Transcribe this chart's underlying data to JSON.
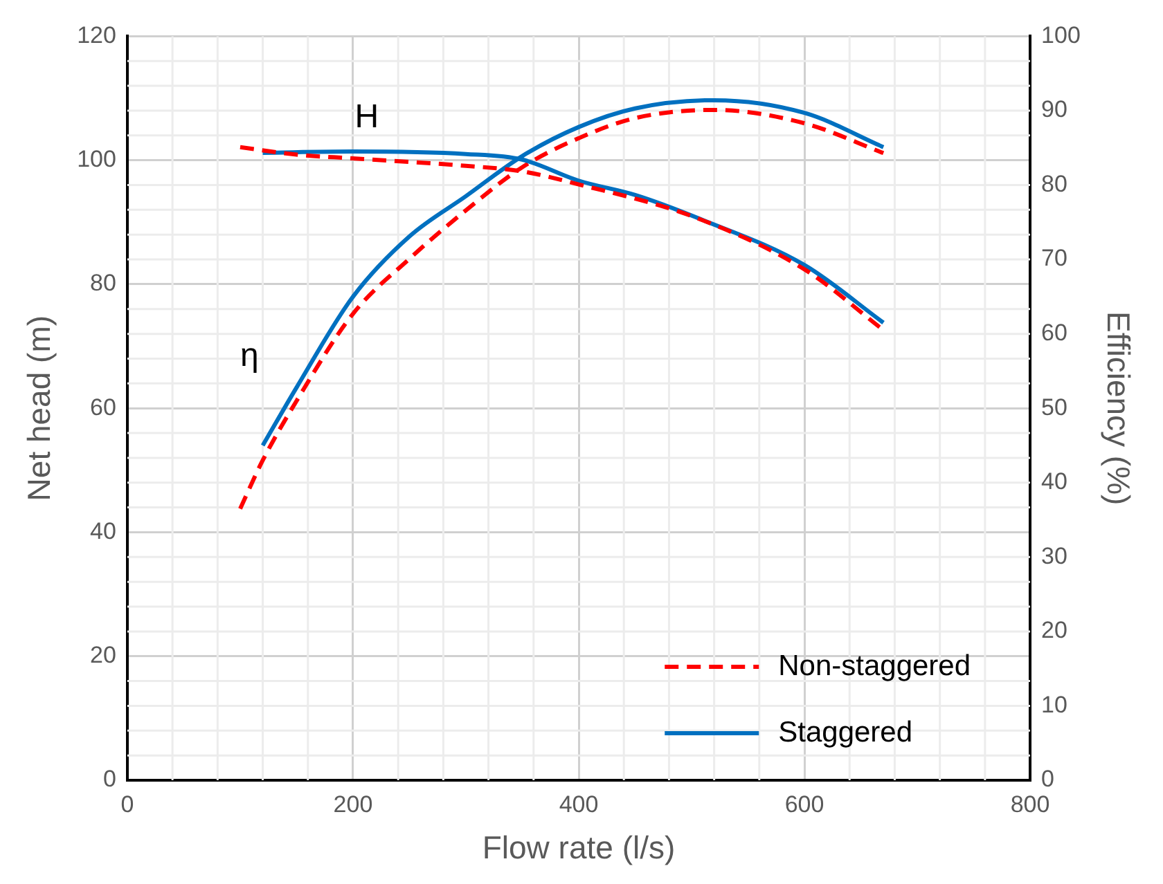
{
  "chart_data": {
    "type": "line",
    "xlabel": "Flow rate (l/s)",
    "ylabel": "Net head (m)",
    "y2label": "Efficiency (%)",
    "xlim": [
      0,
      800
    ],
    "xticks": [
      0,
      200,
      400,
      600,
      800
    ],
    "ylim": [
      0,
      120
    ],
    "yticks": [
      0,
      20,
      40,
      60,
      80,
      100,
      120
    ],
    "y2lim": [
      0,
      100
    ],
    "y2ticks": [
      0,
      10,
      20,
      30,
      40,
      50,
      60,
      70,
      80,
      90,
      100
    ],
    "grid": true,
    "legend": "bottom right",
    "marker": "none",
    "annotations": [
      "H",
      "η"
    ],
    "series": [
      {
        "name": "Non-staggered",
        "color": "#ff0000",
        "line_style": "dashed",
        "x": [
          100,
          150,
          200,
          300,
          350,
          400,
          500,
          600,
          670
        ],
        "values": [
          102.1,
          100.9,
          100.3,
          99.1,
          98.2,
          96.1,
          91,
          82.4,
          72.6
        ]
      },
      {
        "name": "Staggered",
        "color": "#0070c0",
        "line_style": "solid",
        "x": [
          120,
          200,
          300,
          350,
          400,
          450,
          508,
          600,
          670
        ],
        "values": [
          101.2,
          101.4,
          101,
          100.1,
          96.7,
          94.4,
          90.5,
          83.1,
          73.8
        ]
      },
      {
        "color": "#ff0000",
        "line_style": "dashed",
        "axis": "y2",
        "x": [
          100,
          120,
          150,
          200,
          250,
          300,
          350,
          400,
          450,
          520,
          600,
          670
        ],
        "values": [
          36.5,
          43,
          51,
          62.7,
          70.1,
          76.6,
          82.4,
          86.3,
          89,
          90.1,
          88.3,
          84.3
        ]
      },
      {
        "color": "#0070c0",
        "line_style": "solid",
        "axis": "y2",
        "x": [
          120,
          150,
          200,
          250,
          300,
          350,
          400,
          450,
          520,
          600,
          670
        ],
        "values": [
          45,
          52.8,
          65,
          73.1,
          78.5,
          83.9,
          87.8,
          90.3,
          91.4,
          89.7,
          85.1
        ]
      }
    ]
  }
}
